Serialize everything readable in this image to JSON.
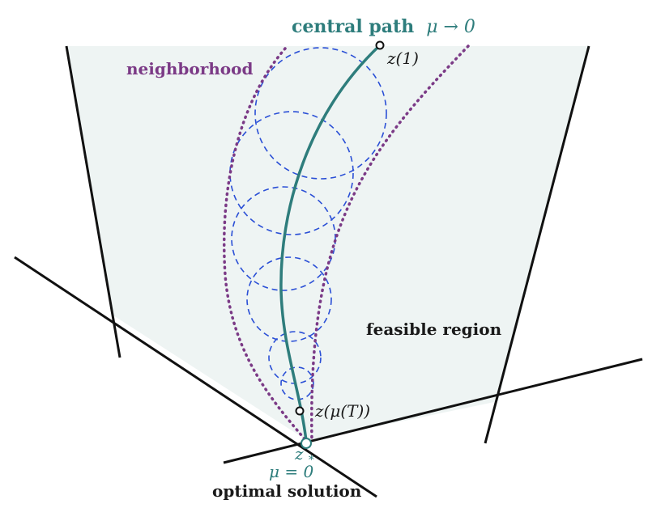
{
  "colors": {
    "region_fill": "#eef4f3",
    "boundary": "#111111",
    "path": "#2e7d7c",
    "neighborhood": "#7b3a86",
    "circles": "#2a4fd6",
    "text_dark": "#1a1a1a"
  },
  "labels": {
    "central_path": "central path",
    "central_path_limit": "μ → 0",
    "neighborhood": "neighborhood",
    "z1": "z(1)",
    "zmuT": "z(μ(T))",
    "zstar": "z",
    "zstar_sub": "*",
    "mu_zero": "μ = 0",
    "feasible_region": "feasible region",
    "optimal_solution": "optimal solution"
  }
}
